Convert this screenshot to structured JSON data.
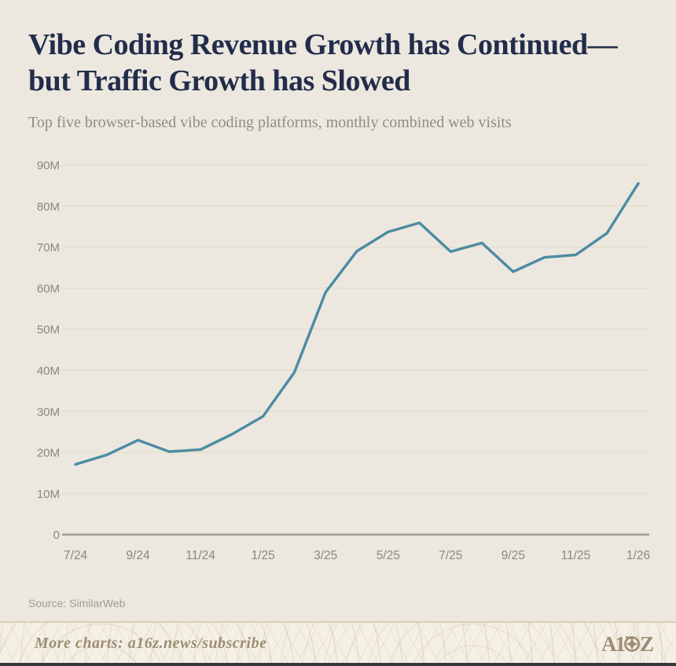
{
  "header": {
    "title_line1": "Vibe Coding Revenue Growth has Continued—",
    "title_line2": "but Traffic Growth has Slowed",
    "subtitle": "Top five browser-based vibe coding platforms, monthly combined web visits"
  },
  "chart_data": {
    "type": "line",
    "title": "Vibe Coding Revenue Growth has Continued—but Traffic Growth has Slowed",
    "subtitle": "Top five browser-based vibe coding platforms, monthly combined web visits",
    "x": [
      "7/24",
      "8/24",
      "9/24",
      "10/24",
      "11/24",
      "12/24",
      "1/25",
      "2/25",
      "3/25",
      "4/25",
      "5/25",
      "6/25",
      "7/25",
      "8/25",
      "9/25",
      "10/25",
      "11/25",
      "12/25",
      "1/26"
    ],
    "series": [
      {
        "name": "Monthly combined web visits (millions)",
        "values": [
          17.1,
          19.4,
          23.0,
          20.2,
          20.7,
          24.4,
          28.8,
          39.5,
          59.0,
          69.0,
          73.7,
          75.9,
          68.9,
          71.0,
          64.0,
          67.5,
          68.1,
          73.4,
          85.5
        ]
      }
    ],
    "ylim": [
      0,
      90
    ],
    "yticks": [
      "0",
      "10M",
      "20M",
      "30M",
      "40M",
      "50M",
      "60M",
      "70M",
      "80M",
      "90M"
    ],
    "xtick_labels": [
      "7/24",
      "9/24",
      "11/24",
      "1/25",
      "3/25",
      "5/25",
      "7/25",
      "9/25",
      "11/25",
      "1/26"
    ],
    "grid": "horizontal",
    "legend": "none",
    "line_color": "#4D8BA3",
    "gridline_color": "#E3DDCA",
    "baseline_color": "#A49E91",
    "tick_label_color": "#8D877C"
  },
  "footer": {
    "source": "Source: SimilarWeb",
    "promo": "More charts: a16z.news/subscribe",
    "logo": "A16Z"
  },
  "colors": {
    "background": "#ECE8DF",
    "title_navy": "#222C4B",
    "accent_teal": "#4D8BA3",
    "footer_taupe": "#9C8D75"
  }
}
